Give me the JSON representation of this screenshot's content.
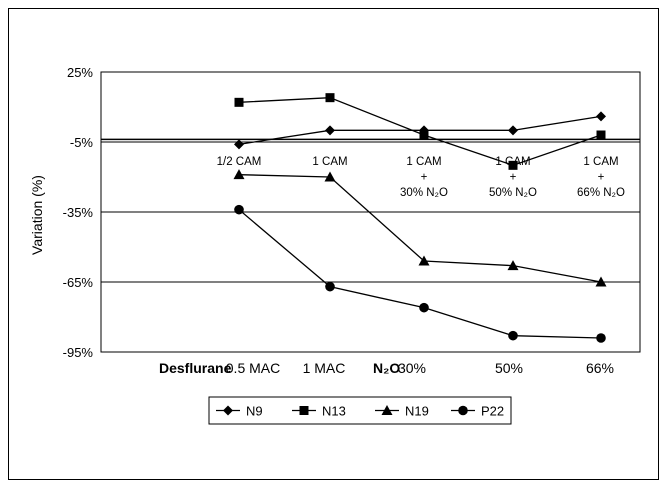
{
  "chart_data": {
    "type": "line",
    "ylabel": "Variation (%)",
    "yticks": [
      "25%",
      "-5%",
      "-35%",
      "-65%",
      "-95%"
    ],
    "ylim": [
      -95,
      25
    ],
    "grid": "horizontal",
    "legend_position": "bottom",
    "x_prefix_labels": {
      "first": "Desflurane",
      "second": "N₂O"
    },
    "categories": [
      "0.5 MAC",
      "1 MAC",
      "30%",
      "50%",
      "66%"
    ],
    "inner_annotations": [
      [
        "1/2 CAM"
      ],
      [
        "1 CAM"
      ],
      [
        "1 CAM",
        "+",
        "30% N₂O"
      ],
      [
        "1 CAM",
        "+",
        "50% N₂O"
      ],
      [
        "1 CAM",
        "+",
        "66% N₂O"
      ]
    ],
    "series": [
      {
        "name": "N9",
        "marker": "diamond",
        "values": [
          -6,
          0,
          0,
          0,
          6
        ]
      },
      {
        "name": "N13",
        "marker": "square",
        "values": [
          12,
          14,
          -2,
          -15,
          -2
        ]
      },
      {
        "name": "N19",
        "marker": "triangle",
        "values": [
          -19,
          -20,
          -56,
          -58,
          -65
        ]
      },
      {
        "name": "P22",
        "marker": "circle",
        "values": [
          -34,
          -67,
          -76,
          -88,
          -89
        ]
      }
    ]
  }
}
